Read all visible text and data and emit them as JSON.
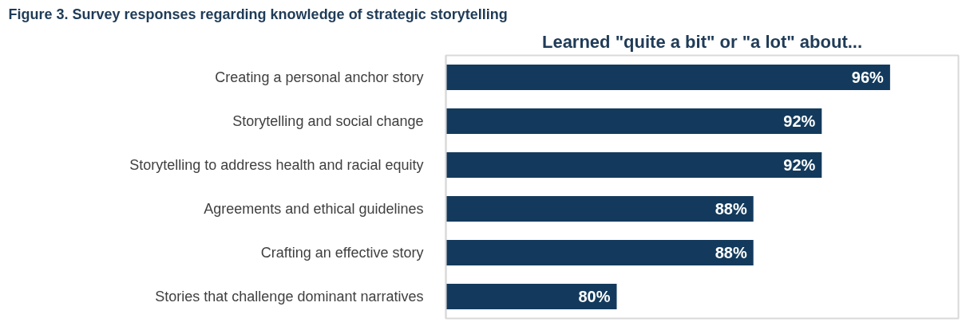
{
  "chart_data": {
    "type": "bar",
    "orientation": "horizontal",
    "title": "Figure 3. Survey responses regarding knowledge of strategic storytelling",
    "subtitle": "Learned \"quite a bit\" or \"a lot\" about...",
    "categories": [
      "Creating a personal anchor story",
      "Storytelling and social change",
      "Storytelling to address health and racial equity",
      "Agreements and ethical guidelines",
      "Crafting an effective story",
      "Stories that challenge dominant narratives"
    ],
    "values": [
      96,
      92,
      92,
      88,
      88,
      80
    ],
    "value_labels": [
      "96%",
      "92%",
      "92%",
      "88%",
      "88%",
      "80%"
    ],
    "color": "#133a5c",
    "xlim": [
      70,
      100
    ],
    "tick_labels": "y",
    "grid": false
  }
}
